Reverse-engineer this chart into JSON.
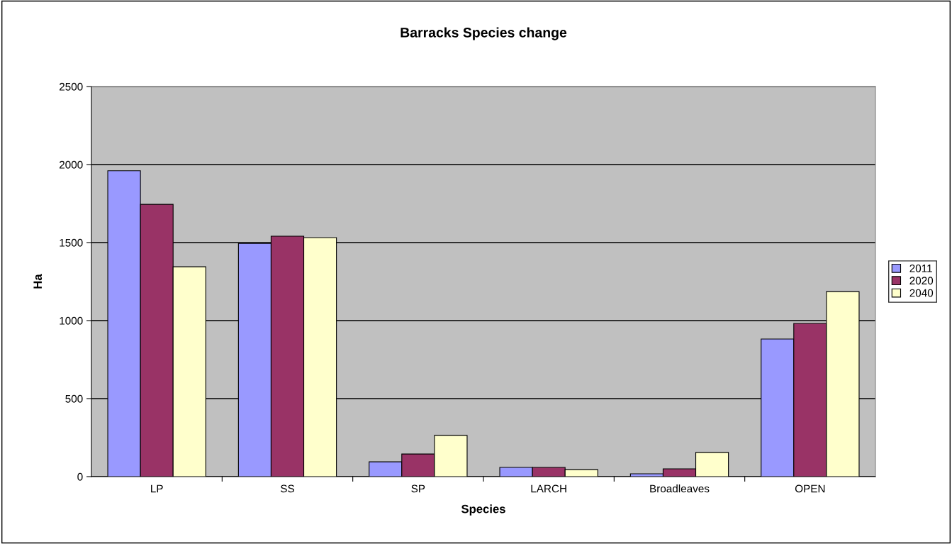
{
  "chart_data": {
    "type": "bar",
    "title": "Barracks Species change",
    "xlabel": "Species",
    "ylabel": "Ha",
    "categories": [
      "LP",
      "SS",
      "SP",
      "LARCH",
      "Broadleaves",
      "OPEN"
    ],
    "series": [
      {
        "name": "2011",
        "color": "#9999ff",
        "values": [
          1960,
          1495,
          95,
          59,
          18,
          882
        ]
      },
      {
        "name": "2020",
        "color": "#993366",
        "values": [
          1745,
          1541,
          145,
          59,
          50,
          982
        ]
      },
      {
        "name": "2040",
        "color": "#ffffcc",
        "values": [
          1345,
          1532,
          264,
          45,
          155,
          1186
        ]
      }
    ],
    "ylim": [
      0,
      2500
    ],
    "yticks": [
      0,
      500,
      1000,
      1500,
      2000,
      2500
    ],
    "grid": "y",
    "legend": "right"
  }
}
